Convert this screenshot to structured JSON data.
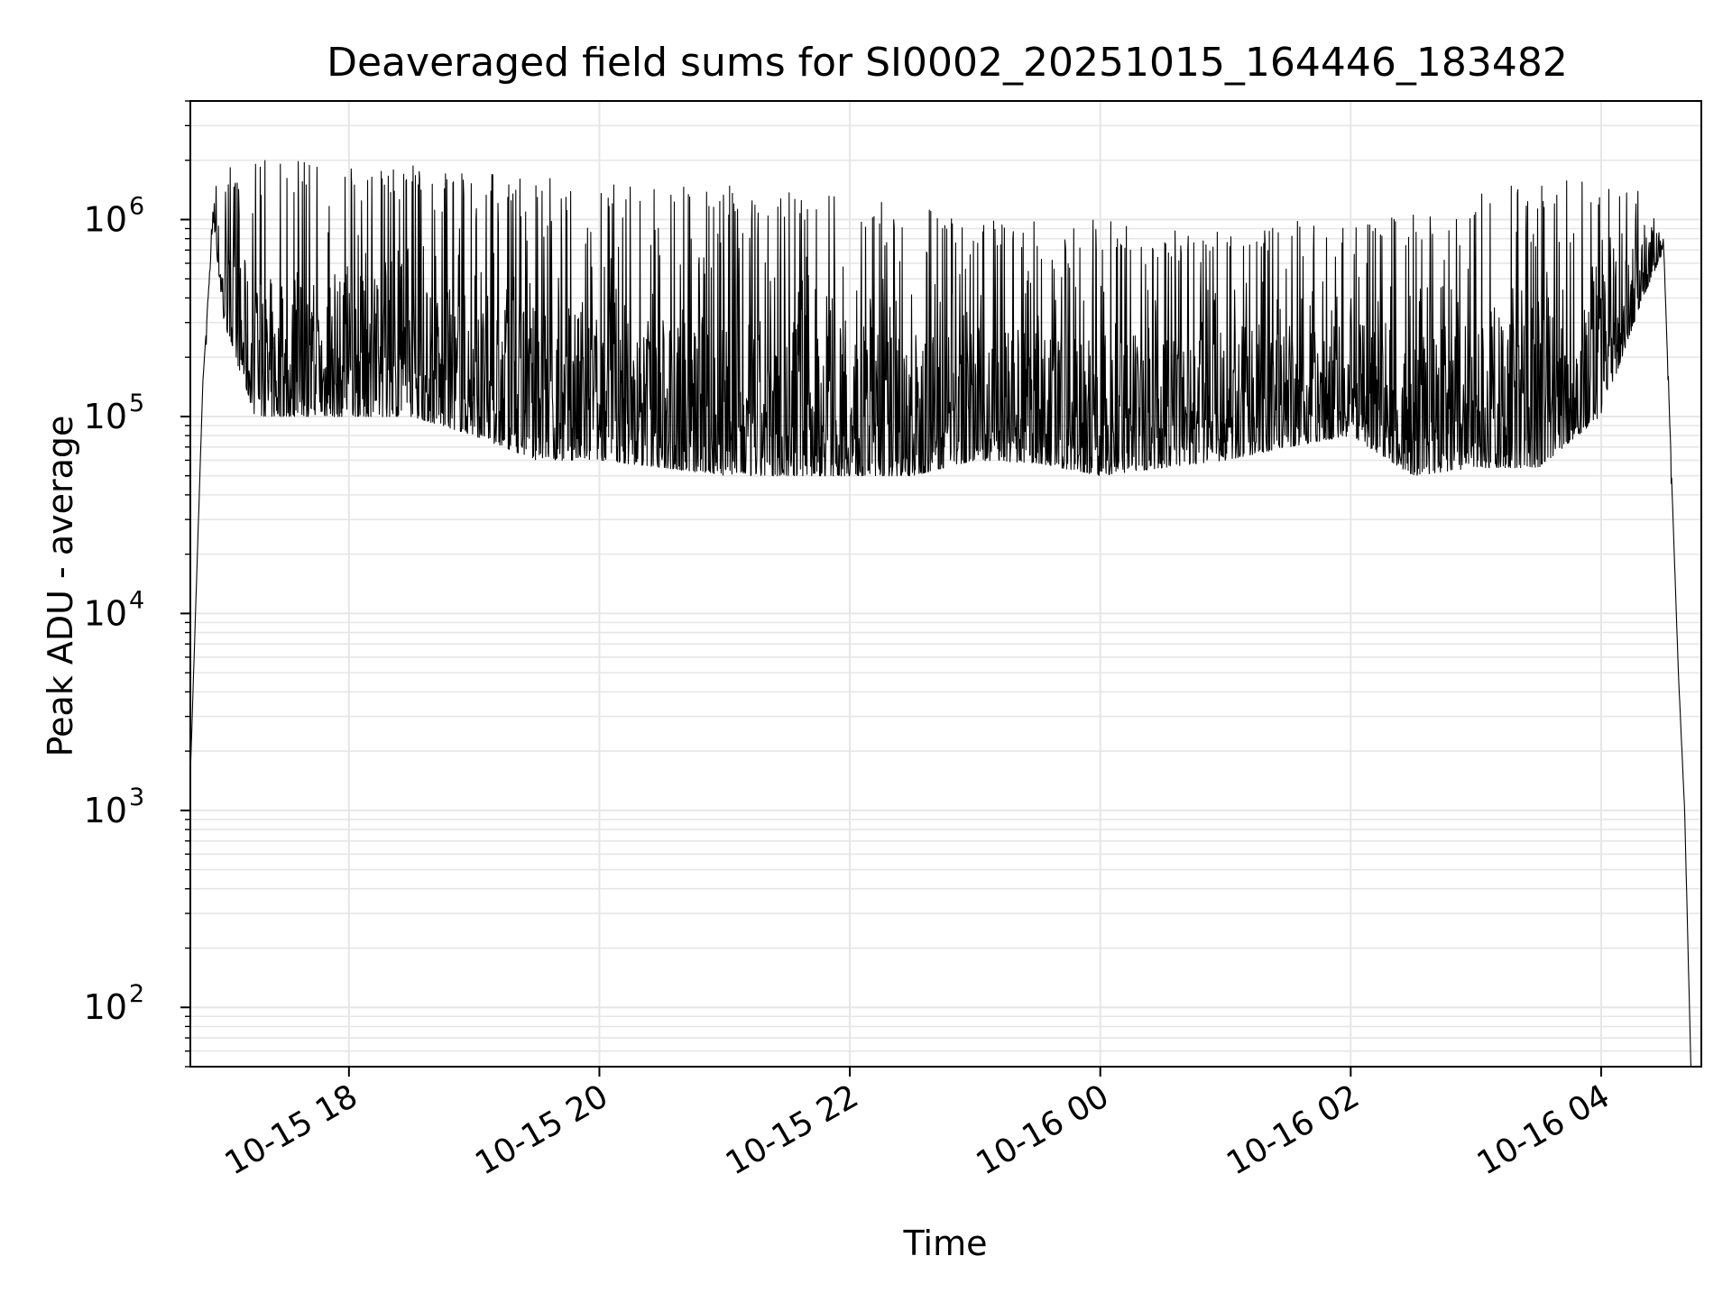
{
  "chart_data": {
    "type": "line",
    "title": "Deaveraged field sums for SI0002_20251015_164446_183482",
    "xlabel": "Time",
    "ylabel": "Peak ADU - average",
    "yscale": "log",
    "ylim": [
      50,
      4000000
    ],
    "xlim": [
      "2025-10-15 16:44",
      "2025-10-16 04:48"
    ],
    "x_ticks": [
      "10-15 18",
      "10-15 20",
      "10-15 22",
      "10-16 00",
      "10-16 02",
      "10-16 04"
    ],
    "x_tick_times": [
      "2025-10-15 18:00",
      "2025-10-15 20:00",
      "2025-10-15 22:00",
      "2025-10-16 00:00",
      "2025-10-16 02:00",
      "2025-10-16 04:00"
    ],
    "y_ticks": [
      {
        "base": "10",
        "exp": "2",
        "value": 100
      },
      {
        "base": "10",
        "exp": "3",
        "value": 1000
      },
      {
        "base": "10",
        "exp": "4",
        "value": 10000
      },
      {
        "base": "10",
        "exp": "5",
        "value": 100000
      },
      {
        "base": "10",
        "exp": "6",
        "value": 1000000
      }
    ],
    "grid": true,
    "grid_minor": true,
    "line_color": "#000000",
    "grid_color": "#e6e6e6",
    "series": [
      {
        "x": [
          "2025-10-15 16:44",
          "2025-10-15 16:50",
          "2025-10-15 16:55",
          "2025-10-15 17:00",
          "2025-10-15 17:15",
          "2025-10-15 17:30",
          "2025-10-15 18:00",
          "2025-10-15 18:30",
          "2025-10-15 19:00",
          "2025-10-15 19:30",
          "2025-10-15 20:00",
          "2025-10-15 20:30",
          "2025-10-15 21:00",
          "2025-10-15 21:30",
          "2025-10-15 22:00",
          "2025-10-15 22:30",
          "2025-10-15 23:00",
          "2025-10-15 23:30",
          "2025-10-16 00:00",
          "2025-10-16 00:30",
          "2025-10-16 01:00",
          "2025-10-16 01:30",
          "2025-10-16 02:00",
          "2025-10-16 02:30",
          "2025-10-16 03:00",
          "2025-10-16 03:30",
          "2025-10-16 04:00",
          "2025-10-16 04:20",
          "2025-10-16 04:30",
          "2025-10-16 04:37",
          "2025-10-16 04:40",
          "2025-10-16 04:43"
        ],
        "y_low": [
          1500,
          150000,
          1000000,
          300000,
          100000,
          100000,
          100000,
          100000,
          80000,
          60000,
          60000,
          55000,
          50000,
          50000,
          50000,
          50000,
          60000,
          58000,
          50000,
          55000,
          60000,
          70000,
          80000,
          50000,
          55000,
          55000,
          100000,
          400000,
          700000,
          5000,
          1000,
          50
        ],
        "y_high": [
          1500,
          150000,
          1500000,
          2000000,
          2000000,
          2000000,
          2000000,
          1900000,
          1800000,
          1700000,
          1600000,
          1500000,
          1500000,
          1400000,
          1300000,
          1200000,
          1000000,
          1000000,
          1000000,
          900000,
          1000000,
          1000000,
          900000,
          1200000,
          1500000,
          1600000,
          1700000,
          1500000,
          900000,
          5000,
          1000,
          50
        ]
      }
    ]
  }
}
